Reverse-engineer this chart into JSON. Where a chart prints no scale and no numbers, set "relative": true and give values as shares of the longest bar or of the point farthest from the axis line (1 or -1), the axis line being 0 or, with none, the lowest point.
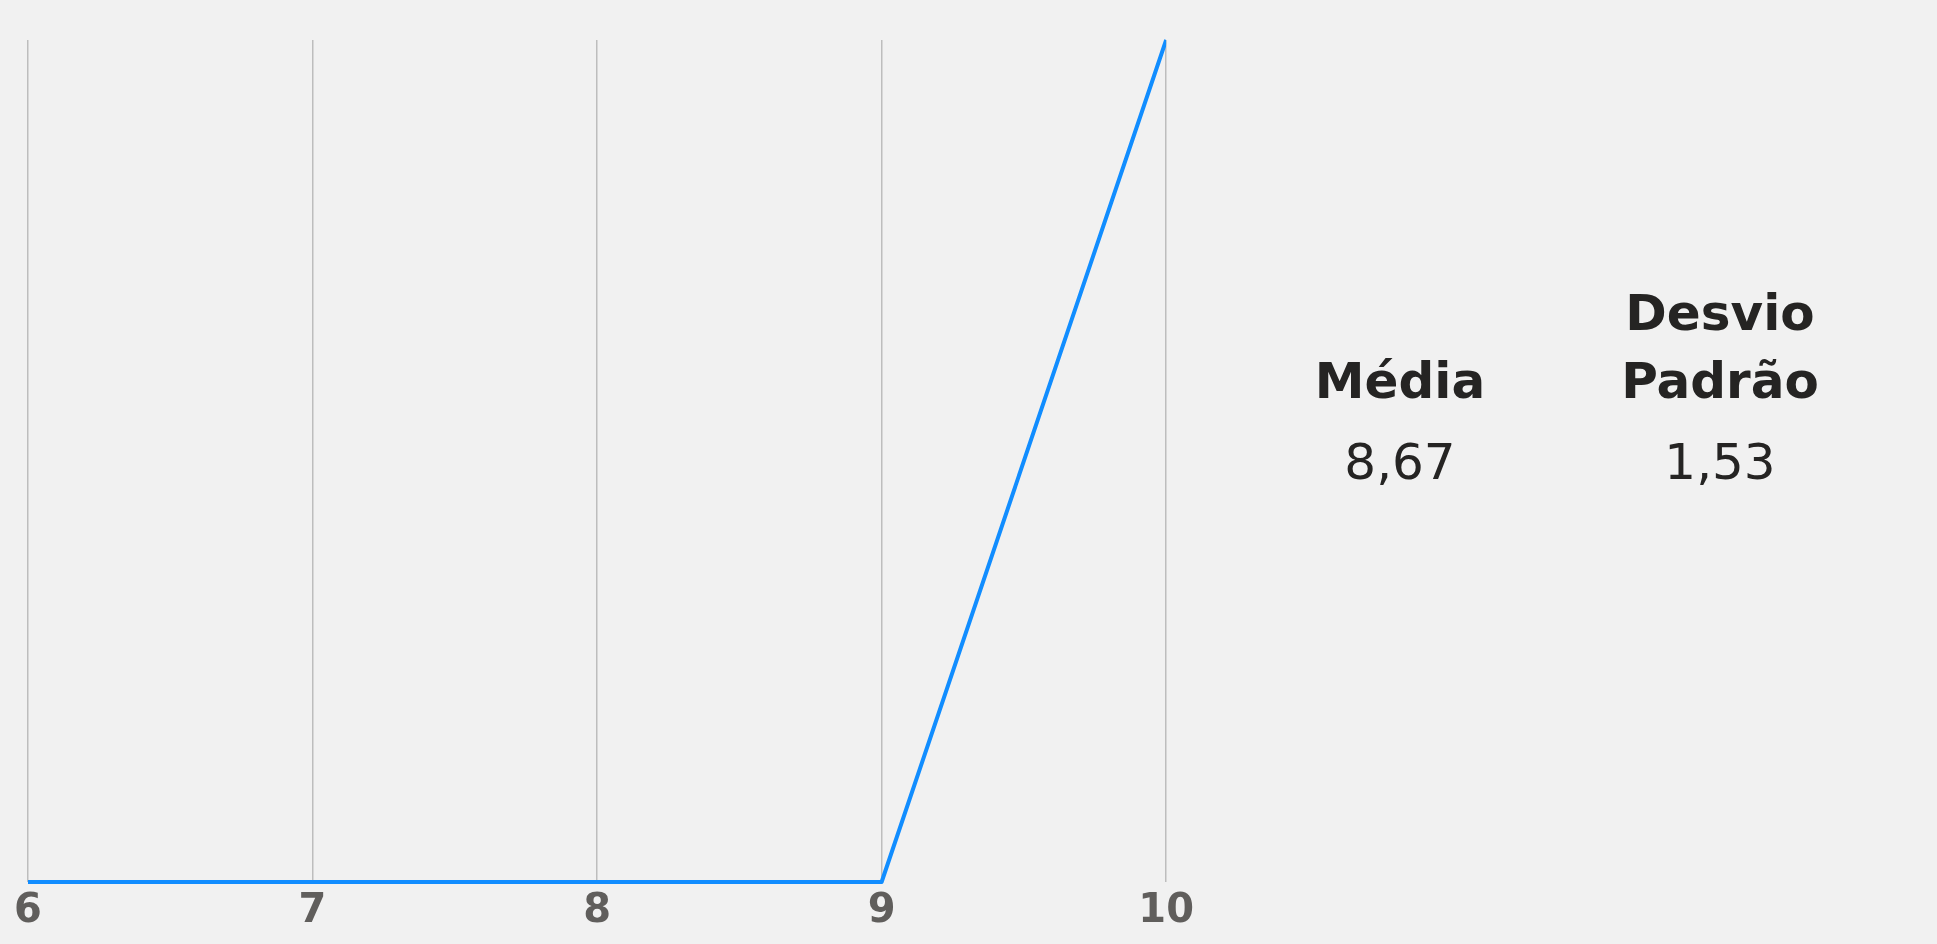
{
  "chart_data": [
    {
      "type": "line",
      "x": [
        6,
        7,
        8,
        9,
        10
      ],
      "relative": true,
      "series": [
        {
          "color": "#118dff",
          "values": [
            0,
            0,
            0,
            0,
            1
          ]
        }
      ],
      "xlim": [
        6,
        10
      ],
      "xticks": [
        6,
        7,
        8,
        9,
        10
      ],
      "grid": "x",
      "tick_labels": "x",
      "marker": "none",
      "line_style": "solid",
      "legend": false
    },
    {
      "type": "other",
      "annotations": [
        "Média",
        "8,67",
        "Desvio Padrão",
        "1,53"
      ]
    }
  ]
}
